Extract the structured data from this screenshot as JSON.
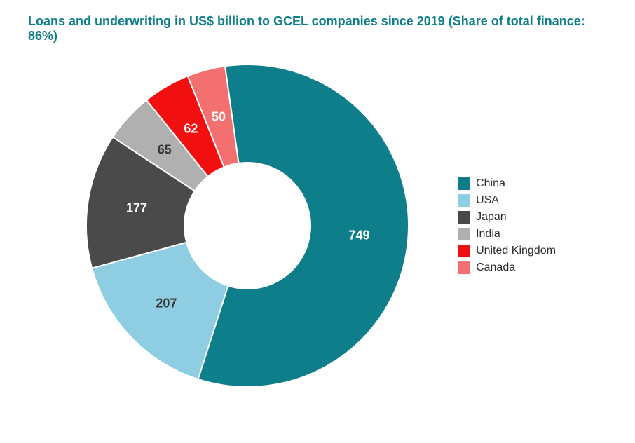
{
  "title": {
    "text": "Loans and underwriting in US$ billion to GCEL companies since 2019 (Share of total finance: 86%)",
    "color": "#0e7e8a",
    "fontsize": 18
  },
  "chart": {
    "type": "donut",
    "size": 480,
    "outer_radius": 230,
    "inner_radius": 90,
    "start_angle_deg": -8,
    "background_color": "#ffffff",
    "slices": [
      {
        "label": "China",
        "value": 749,
        "color": "#0e7e8a",
        "label_color": "#ffffff",
        "label_fontsize": 18
      },
      {
        "label": "USA",
        "value": 207,
        "color": "#8ecde2",
        "label_color": "#363636",
        "label_fontsize": 18
      },
      {
        "label": "Japan",
        "value": 177,
        "color": "#4a4a4a",
        "label_color": "#ffffff",
        "label_fontsize": 18
      },
      {
        "label": "India",
        "value": 65,
        "color": "#b0b0b0",
        "label_color": "#363636",
        "label_fontsize": 18
      },
      {
        "label": "United Kingdom",
        "value": 62,
        "color": "#f20f0f",
        "label_color": "#ffffff",
        "label_fontsize": 18
      },
      {
        "label": "Canada",
        "value": 50,
        "color": "#f47070",
        "label_color": "#ffffff",
        "label_fontsize": 18
      }
    ],
    "legend": {
      "position": "right",
      "text_color": "#2b2b2b",
      "fontsize": 16,
      "swatch_size": 18
    }
  }
}
